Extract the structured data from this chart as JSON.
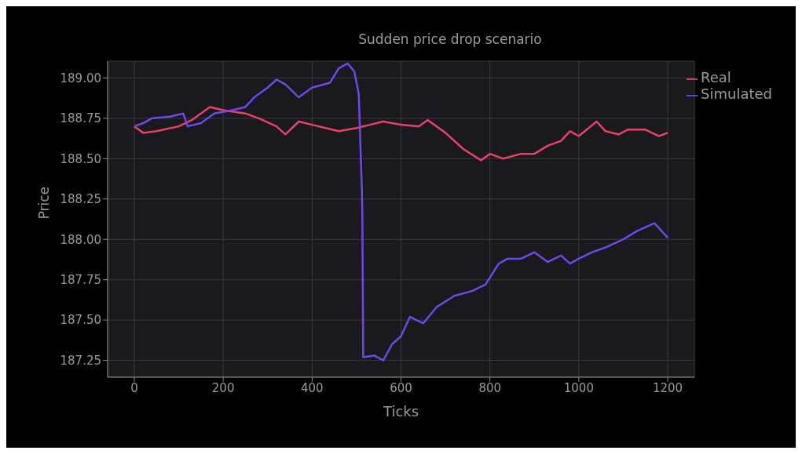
{
  "chart_data": {
    "type": "line",
    "title": "Sudden price drop scenario",
    "xlabel": "Ticks",
    "ylabel": "Price",
    "xlim": [
      -60,
      1260
    ],
    "xticks": [
      0,
      200,
      400,
      600,
      800,
      1000,
      1200
    ],
    "ylim": [
      187.146,
      189.104
    ],
    "yticks": [
      {
        "value": 187.25,
        "label": "187.25"
      },
      {
        "value": 187.5,
        "label": "187.50"
      },
      {
        "value": 187.75,
        "label": "187.75"
      },
      {
        "value": 188,
        "label": "188.00"
      },
      {
        "value": 188.25,
        "label": "188.25"
      },
      {
        "value": 188.5,
        "label": "188.50"
      },
      {
        "value": 188.75,
        "label": "188.75"
      },
      {
        "value": 189,
        "label": "189.00"
      }
    ],
    "grid": true,
    "legend": "top right",
    "line_style": "solid",
    "marker": "none",
    "series": [
      {
        "name": "Real",
        "color": "#e8406a",
        "x": [
          0,
          20,
          50,
          100,
          130,
          170,
          200,
          250,
          280,
          320,
          340,
          370,
          400,
          430,
          460,
          500,
          530,
          560,
          600,
          640,
          660,
          700,
          740,
          780,
          800,
          830,
          870,
          900,
          930,
          960,
          980,
          1000,
          1040,
          1060,
          1090,
          1110,
          1150,
          1180,
          1200
        ],
        "values": [
          188.7,
          188.66,
          188.67,
          188.7,
          188.74,
          188.82,
          188.8,
          188.78,
          188.75,
          188.7,
          188.65,
          188.73,
          188.71,
          188.69,
          188.67,
          188.69,
          188.71,
          188.73,
          188.71,
          188.7,
          188.74,
          188.66,
          188.56,
          188.49,
          188.53,
          188.5,
          188.53,
          188.53,
          188.58,
          188.61,
          188.67,
          188.64,
          188.73,
          188.67,
          188.65,
          188.68,
          188.68,
          188.64,
          188.66
        ]
      },
      {
        "name": "Simulated",
        "color": "#7048e8",
        "x": [
          0,
          20,
          40,
          80,
          110,
          120,
          150,
          180,
          220,
          250,
          270,
          300,
          320,
          340,
          370,
          400,
          440,
          460,
          480,
          495,
          505,
          512,
          513,
          515,
          540,
          560,
          580,
          600,
          620,
          650,
          680,
          720,
          760,
          790,
          820,
          840,
          870,
          900,
          930,
          960,
          980,
          1000,
          1030,
          1060,
          1100,
          1130,
          1170,
          1200
        ],
        "values": [
          188.7,
          188.72,
          188.75,
          188.76,
          188.78,
          188.7,
          188.72,
          188.78,
          188.8,
          188.82,
          188.88,
          188.94,
          188.99,
          188.96,
          188.88,
          188.94,
          188.97,
          189.06,
          189.09,
          189.04,
          188.9,
          188.3,
          188.17,
          187.27,
          187.28,
          187.25,
          187.35,
          187.4,
          187.52,
          187.48,
          187.58,
          187.65,
          187.68,
          187.72,
          187.85,
          187.88,
          187.88,
          187.92,
          187.86,
          187.9,
          187.85,
          187.88,
          187.92,
          187.95,
          188.0,
          188.05,
          188.1,
          188.01
        ]
      }
    ]
  }
}
